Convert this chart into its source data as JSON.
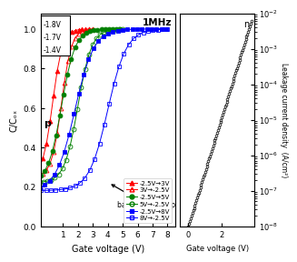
{
  "title": "1MHz",
  "xlabel": "Gate voltage (V)",
  "ylabel": "C/Cₒₓ",
  "xlim_cv": [
    -0.5,
    8.5
  ],
  "ylim_cv": [
    0.0,
    1.08
  ],
  "xticks_cv": [
    1,
    2,
    3,
    4,
    5,
    6,
    7,
    8
  ],
  "legend_entries": [
    "-2.5V→3V",
    "3V→-2.5V",
    "-2.5V→5V",
    "5V→-2.5V",
    "-2.5V→8V",
    "8V→-2.5V"
  ],
  "legend_colors": [
    "red",
    "red",
    "green",
    "green",
    "blue",
    "blue"
  ],
  "legend_markers": [
    "^",
    "^",
    "o",
    "o",
    "s",
    "s"
  ],
  "legend_fills": [
    true,
    false,
    true,
    false,
    true,
    false
  ],
  "annotation_text": "backward sweep",
  "background_color": "#ffffff",
  "inset_labels": [
    "-1.8V",
    "-1.7V",
    "-1.4V"
  ],
  "p_label": "p",
  "ylabel_leakage": "Leakage current density  (A/cm²)",
  "xlabel_leakage": "Gate voltage (V)",
  "xlim_leak": [
    -0.5,
    4.0
  ],
  "ylim_leak_log": [
    -8,
    -2
  ],
  "leakage_xticks": [
    0,
    2
  ]
}
